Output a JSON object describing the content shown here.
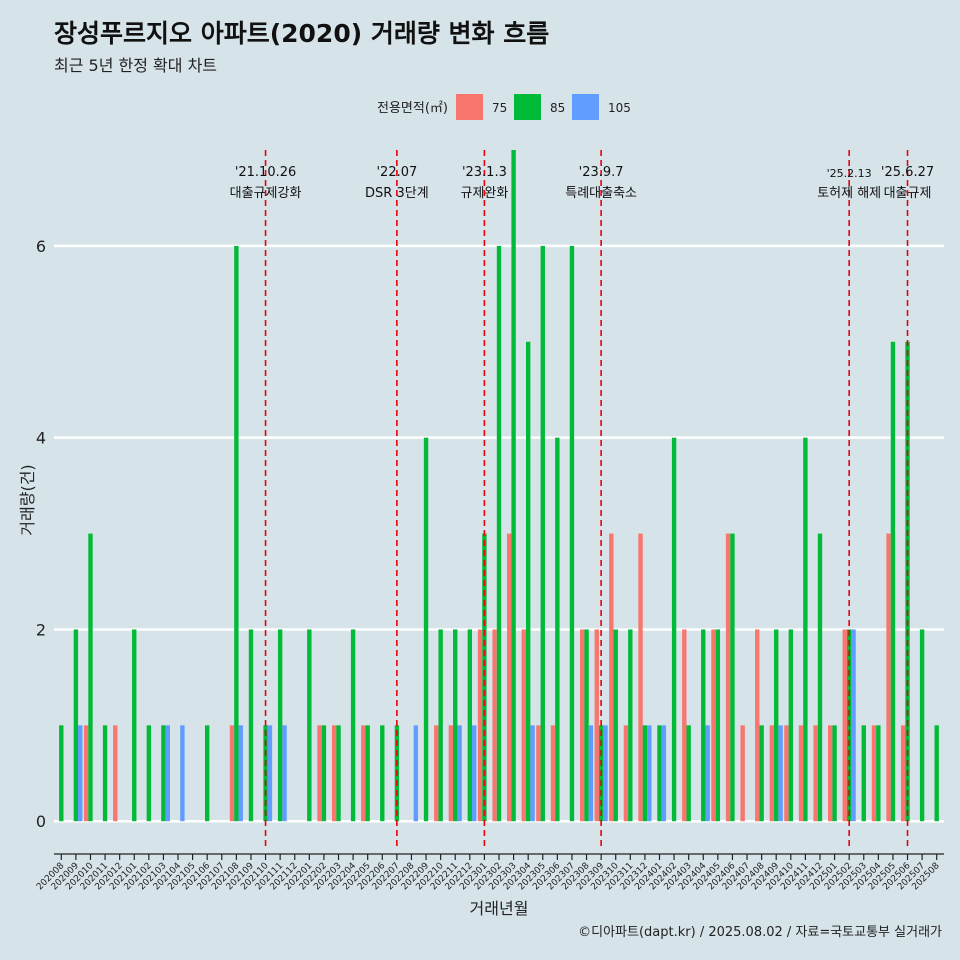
{
  "chart_data": {
    "type": "bar",
    "title": "장성푸르지오 아파트(2020) 거래량 변화 흐름",
    "subtitle": "최근 5년 한정 확대 차트",
    "xlabel": "거래년월",
    "ylabel": "거래량(건)",
    "caption": "©디아파트(dapt.kr) / 2025.08.02 / 자료=국토교통부 실거래가",
    "legend": {
      "title": "전용면적(㎡)",
      "position": "top"
    },
    "ylim": [
      -0.3,
      7.0
    ],
    "yticks": [
      0,
      2,
      4,
      6
    ],
    "grid": true,
    "categories": [
      "202008",
      "202009",
      "202010",
      "202011",
      "202012",
      "202101",
      "202102",
      "202103",
      "202104",
      "202105",
      "202106",
      "202107",
      "202108",
      "202109",
      "202110",
      "202111",
      "202112",
      "202201",
      "202202",
      "202203",
      "202204",
      "202205",
      "202206",
      "202207",
      "202208",
      "202209",
      "202210",
      "202211",
      "202212",
      "202301",
      "202302",
      "202303",
      "202304",
      "202305",
      "202306",
      "202307",
      "202308",
      "202309",
      "202310",
      "202311",
      "202312",
      "202401",
      "202402",
      "202403",
      "202404",
      "202405",
      "202406",
      "202407",
      "202408",
      "202409",
      "202410",
      "202411",
      "202412",
      "202501",
      "202502",
      "202503",
      "202504",
      "202505",
      "202506",
      "202507",
      "202508"
    ],
    "series": [
      {
        "name": "75",
        "color": "#f8766d",
        "values": [
          0,
          0,
          1,
          0,
          1,
          0,
          0,
          0,
          0,
          0,
          0,
          0,
          1,
          0,
          0,
          0,
          0,
          0,
          1,
          1,
          0,
          1,
          0,
          0,
          0,
          0,
          1,
          1,
          0,
          2,
          2,
          3,
          2,
          1,
          1,
          0,
          2,
          2,
          3,
          1,
          3,
          0,
          0,
          2,
          0,
          2,
          3,
          1,
          2,
          1,
          1,
          1,
          1,
          1,
          2,
          0,
          1,
          3,
          1,
          0,
          0
        ]
      },
      {
        "name": "85",
        "color": "#00ba38",
        "values": [
          1,
          2,
          3,
          1,
          0,
          2,
          1,
          1,
          0,
          0,
          1,
          0,
          6,
          2,
          1,
          2,
          0,
          2,
          1,
          1,
          2,
          1,
          1,
          1,
          0,
          4,
          2,
          2,
          2,
          3,
          6,
          7,
          5,
          6,
          4,
          6,
          2,
          1,
          2,
          2,
          1,
          1,
          4,
          1,
          2,
          2,
          3,
          0,
          1,
          2,
          2,
          4,
          3,
          1,
          2,
          1,
          1,
          5,
          5,
          2,
          1
        ]
      },
      {
        "name": "105",
        "color": "#619cff",
        "values": [
          0,
          1,
          0,
          0,
          0,
          0,
          0,
          1,
          1,
          0,
          0,
          0,
          1,
          0,
          1,
          1,
          0,
          0,
          0,
          0,
          0,
          0,
          0,
          0,
          1,
          0,
          0,
          1,
          1,
          0,
          0,
          0,
          1,
          0,
          0,
          0,
          1,
          1,
          0,
          0,
          1,
          1,
          0,
          0,
          1,
          0,
          0,
          0,
          0,
          1,
          0,
          0,
          0,
          0,
          2,
          0,
          0,
          0,
          0,
          0,
          0
        ]
      }
    ],
    "annotations": [
      {
        "x": "202110",
        "date": "'21.10.26",
        "label": "대출규제강화"
      },
      {
        "x": "202207",
        "date": "'22.07",
        "label": "DSR 3단계"
      },
      {
        "x": "202301",
        "date": "'23.1.3",
        "label": "규제완화"
      },
      {
        "x": "202309",
        "date": "'23.9.7",
        "label": "특례대출축소"
      },
      {
        "x": "202502",
        "date": "'25.2.13",
        "label": "토허제 해제"
      },
      {
        "x": "202506",
        "date": "'25.6.27",
        "label": "대출규제"
      }
    ],
    "annotation_color": "#e8000b"
  }
}
